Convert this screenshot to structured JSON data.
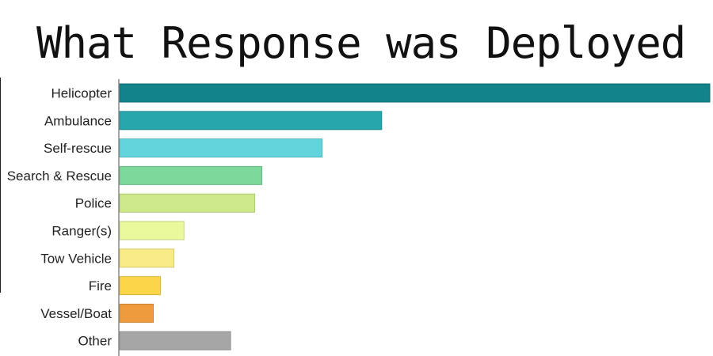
{
  "title": "What Response was Deployed",
  "chart_data": {
    "type": "bar",
    "orientation": "horizontal",
    "title": "What Response was Deployed",
    "xlabel": "",
    "ylabel": "",
    "categories": [
      "Helicopter",
      "Ambulance",
      "Self-rescue",
      "Search & Rescue",
      "Police",
      "Ranger(s)",
      "Tow Vehicle",
      "Fire",
      "Vessel/Boat",
      "Other"
    ],
    "values": [
      100,
      44.4,
      34.3,
      24.1,
      22.9,
      10.9,
      9.2,
      6.9,
      5.7,
      18.8
    ],
    "xlim": [
      0,
      100
    ],
    "grid": false,
    "colors": [
      "#13838a",
      "#27a6ab",
      "#62d5dc",
      "#7dd89c",
      "#cde98a",
      "#eaf99b",
      "#f9ec86",
      "#fdd548",
      "#ee9b3d",
      "#a6a6a6"
    ]
  }
}
